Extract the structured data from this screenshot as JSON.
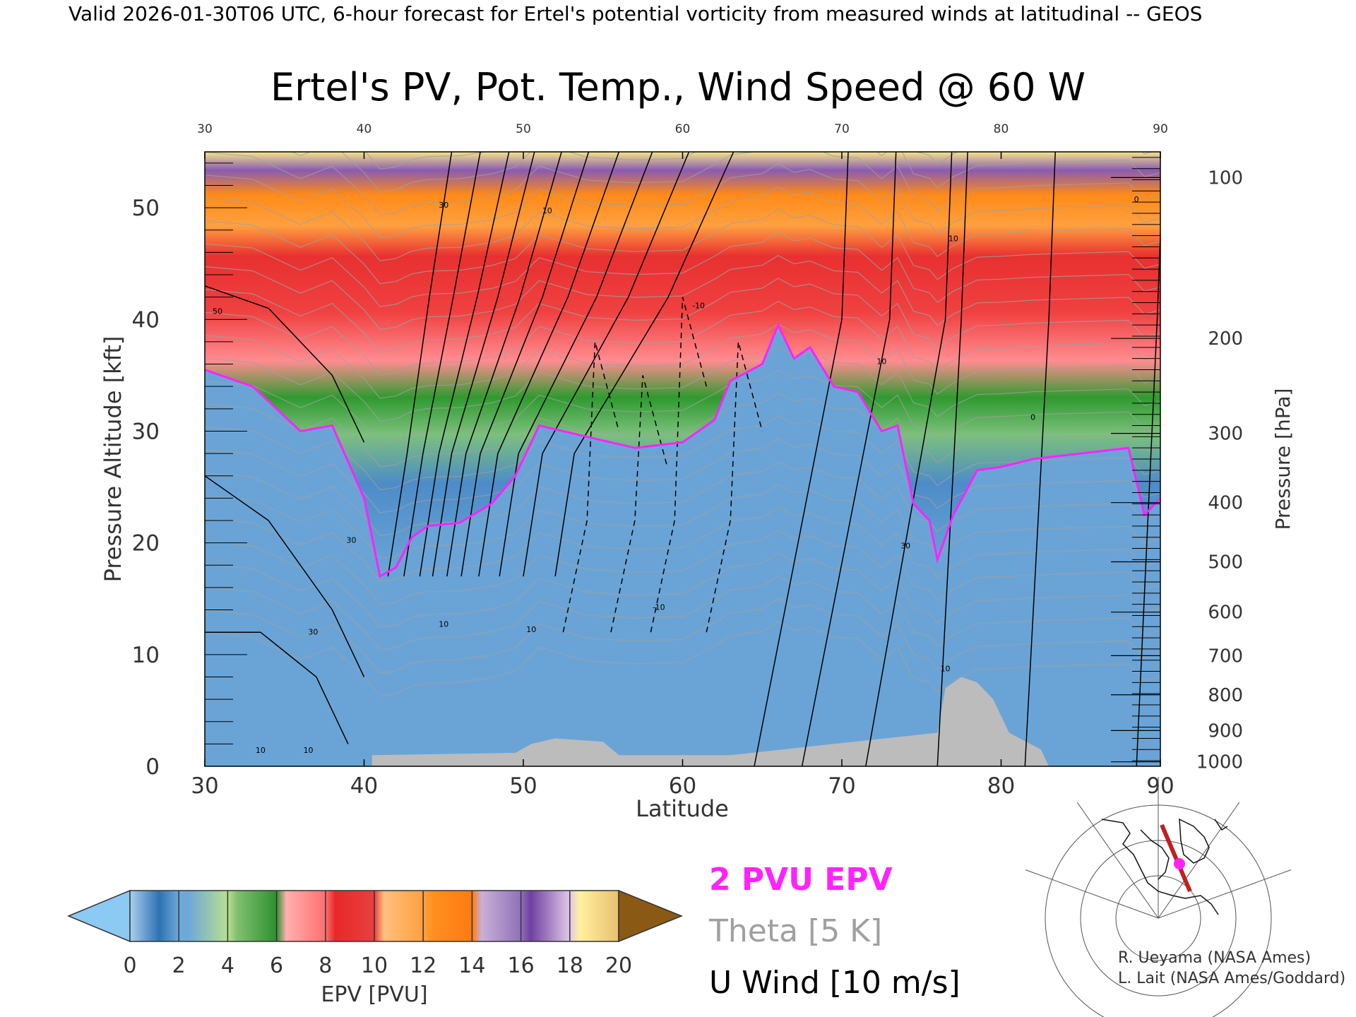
{
  "header": {
    "valid_line": "Valid 2026-01-30T06 UTC, 6-hour forecast for Ertel's potential vorticity from measured winds at latitudinal -- GEOS"
  },
  "chart_data": {
    "type": "heatmap",
    "title": "Ertel's PV, Pot. Temp., Wind Speed @ 60 W",
    "xlabel": "Latitude",
    "ylabel_left": "Pressure Altitude [kft]",
    "ylabel_right": "Pressure [hPa]",
    "xlim": [
      30,
      90
    ],
    "ylim": [
      0,
      55
    ],
    "x_ticks": [
      "30",
      "40",
      "50",
      "60",
      "70",
      "80",
      "90"
    ],
    "top_ticks": [
      "30",
      "40",
      "50",
      "60",
      "70",
      "80",
      "90"
    ],
    "y_ticks": [
      "0",
      "10",
      "20",
      "30",
      "40",
      "50"
    ],
    "pressure_ticks": [
      {
        "label": "100",
        "kft": 52.7
      },
      {
        "label": "200",
        "kft": 38.3
      },
      {
        "label": "300",
        "kft": 29.8
      },
      {
        "label": "400",
        "kft": 23.6
      },
      {
        "label": "500",
        "kft": 18.3
      },
      {
        "label": "600",
        "kft": 13.8
      },
      {
        "label": "700",
        "kft": 9.9
      },
      {
        "label": "800",
        "kft": 6.4
      },
      {
        "label": "900",
        "kft": 3.2
      },
      {
        "label": "1000",
        "kft": 0.4
      }
    ],
    "tropopause_2pvu": [
      {
        "lat": 30,
        "kft": 35.5
      },
      {
        "lat": 33,
        "kft": 34.0
      },
      {
        "lat": 36,
        "kft": 30.0
      },
      {
        "lat": 38,
        "kft": 30.5
      },
      {
        "lat": 40,
        "kft": 24.0
      },
      {
        "lat": 41,
        "kft": 17.0
      },
      {
        "lat": 42,
        "kft": 17.8
      },
      {
        "lat": 43,
        "kft": 20.5
      },
      {
        "lat": 44,
        "kft": 21.5
      },
      {
        "lat": 46,
        "kft": 21.8
      },
      {
        "lat": 48,
        "kft": 23.5
      },
      {
        "lat": 49.5,
        "kft": 26.0
      },
      {
        "lat": 51,
        "kft": 30.5
      },
      {
        "lat": 54,
        "kft": 29.5
      },
      {
        "lat": 57,
        "kft": 28.5
      },
      {
        "lat": 60,
        "kft": 29.0
      },
      {
        "lat": 62,
        "kft": 31.0
      },
      {
        "lat": 63,
        "kft": 34.5
      },
      {
        "lat": 65,
        "kft": 36.0
      },
      {
        "lat": 66,
        "kft": 39.5
      },
      {
        "lat": 67,
        "kft": 36.5
      },
      {
        "lat": 68,
        "kft": 37.5
      },
      {
        "lat": 69.5,
        "kft": 34.0
      },
      {
        "lat": 71,
        "kft": 33.5
      },
      {
        "lat": 72.5,
        "kft": 30.0
      },
      {
        "lat": 73.5,
        "kft": 30.5
      },
      {
        "lat": 74.5,
        "kft": 23.5
      },
      {
        "lat": 75.5,
        "kft": 22.0
      },
      {
        "lat": 76,
        "kft": 18.5
      },
      {
        "lat": 77,
        "kft": 22.5
      },
      {
        "lat": 78.5,
        "kft": 26.5
      },
      {
        "lat": 80,
        "kft": 26.8
      },
      {
        "lat": 82,
        "kft": 27.5
      },
      {
        "lat": 85,
        "kft": 28.0
      },
      {
        "lat": 88,
        "kft": 28.5
      },
      {
        "lat": 89,
        "kft": 22.5
      },
      {
        "lat": 90,
        "kft": 24.0
      }
    ],
    "surface_mask": [
      {
        "lat": 40.5,
        "kft": 1.0
      },
      {
        "lat": 49.5,
        "kft": 1.2
      },
      {
        "lat": 50.5,
        "kft": 2.0
      },
      {
        "lat": 52,
        "kft": 2.5
      },
      {
        "lat": 55,
        "kft": 2.2
      },
      {
        "lat": 56,
        "kft": 1.0
      },
      {
        "lat": 63,
        "kft": 1.0
      },
      {
        "lat": 76,
        "kft": 3.0
      },
      {
        "lat": 76.5,
        "kft": 7.0
      },
      {
        "lat": 77.5,
        "kft": 8.0
      },
      {
        "lat": 78.5,
        "kft": 7.5
      },
      {
        "lat": 79.5,
        "kft": 6.0
      },
      {
        "lat": 80.5,
        "kft": 3.0
      },
      {
        "lat": 82.5,
        "kft": 1.5
      },
      {
        "lat": 83,
        "kft": 0.0
      }
    ],
    "wind_isotach_labels": [
      {
        "text": "50",
        "lat": 30.8,
        "kft": 40.5
      },
      {
        "text": "30",
        "lat": 39.2,
        "kft": 20.0
      },
      {
        "text": "30",
        "lat": 36.8,
        "kft": 11.8
      },
      {
        "text": "10",
        "lat": 33.5,
        "kft": 1.2
      },
      {
        "text": "10",
        "lat": 36.5,
        "kft": 1.2
      },
      {
        "text": "30",
        "lat": 45.0,
        "kft": 50.0
      },
      {
        "text": "10",
        "lat": 45.0,
        "kft": 12.5
      },
      {
        "text": "10",
        "lat": 51.5,
        "kft": 49.5
      },
      {
        "text": "10",
        "lat": 50.5,
        "kft": 12.0
      },
      {
        "text": "-10",
        "lat": 61.0,
        "kft": 41.0
      },
      {
        "text": "-10",
        "lat": 58.5,
        "kft": 14.0
      },
      {
        "text": "10",
        "lat": 72.5,
        "kft": 36.0
      },
      {
        "text": "10",
        "lat": 77.0,
        "kft": 47.0
      },
      {
        "text": "30",
        "lat": 74.0,
        "kft": 19.5
      },
      {
        "text": "10",
        "lat": 76.5,
        "kft": 8.5
      },
      {
        "text": "0",
        "lat": 82.0,
        "kft": 31.0
      },
      {
        "text": "0",
        "lat": 88.5,
        "kft": 50.5
      }
    ]
  },
  "legend": {
    "epv_label": "2 PVU EPV",
    "theta_label": "Theta [5 K]",
    "wind_label": "U Wind [10 m/s]"
  },
  "colorbar": {
    "label": "EPV [PVU]",
    "ticks": [
      "0",
      "2",
      "4",
      "6",
      "8",
      "10",
      "12",
      "14",
      "16",
      "18",
      "20"
    ]
  },
  "credits": {
    "line1": "R. Ueyama (NASA Ames)",
    "line2": "L. Lait (NASA Ames/Goddard)"
  },
  "colors": {
    "tropopause": "#ff22ff",
    "theta": "#a0a0a0",
    "surface": "#bcbcbc",
    "map_track": "#c02020",
    "map_point": "#ff22ff"
  }
}
